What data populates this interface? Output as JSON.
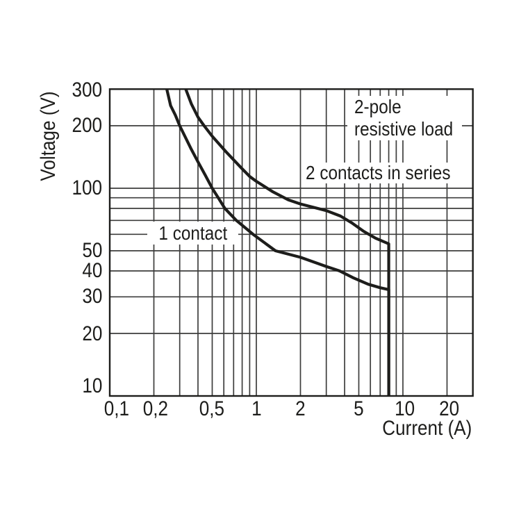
{
  "chart_data": {
    "type": "line",
    "title": "",
    "xlabel": "Current (A)",
    "ylabel": "Voltage (V)",
    "x_scale": "log",
    "y_scale": "log",
    "xlim": [
      0.1,
      30
    ],
    "ylim": [
      10,
      300
    ],
    "grid": true,
    "x_gridlines": [
      0.1,
      0.2,
      0.3,
      0.4,
      0.5,
      0.6,
      0.7,
      0.8,
      0.9,
      1,
      2,
      3,
      4,
      5,
      6,
      7,
      8,
      9,
      10,
      20,
      30
    ],
    "y_gridlines": [
      10,
      20,
      30,
      40,
      50,
      60,
      70,
      80,
      90,
      100,
      200,
      300
    ],
    "x_ticks": [
      {
        "value": 0.1,
        "label": "0,1"
      },
      {
        "value": 0.2,
        "label": "0,2"
      },
      {
        "value": 0.5,
        "label": "0,5"
      },
      {
        "value": 1,
        "label": "1"
      },
      {
        "value": 2,
        "label": "2"
      },
      {
        "value": 5,
        "label": "5"
      },
      {
        "value": 10,
        "label": "10"
      },
      {
        "value": 20,
        "label": "20"
      }
    ],
    "y_ticks": [
      {
        "value": 300,
        "label": "300"
      },
      {
        "value": 200,
        "label": "200"
      },
      {
        "value": 100,
        "label": "100"
      },
      {
        "value": 50,
        "label": "50"
      },
      {
        "value": 40,
        "label": "40"
      },
      {
        "value": 30,
        "label": "30"
      },
      {
        "value": 20,
        "label": "20"
      },
      {
        "value": 10,
        "label": "10"
      }
    ],
    "series": [
      {
        "name": "2 contacts in series",
        "points": [
          [
            0.33,
            300
          ],
          [
            0.36,
            255
          ],
          [
            0.4,
            220
          ],
          [
            0.44,
            200
          ],
          [
            0.5,
            178
          ],
          [
            0.62,
            150
          ],
          [
            0.7,
            137
          ],
          [
            0.8,
            124
          ],
          [
            0.9,
            114
          ],
          [
            1.0,
            108
          ],
          [
            1.3,
            96
          ],
          [
            1.65,
            88
          ],
          [
            2.0,
            84
          ],
          [
            3.0,
            78
          ],
          [
            3.75,
            73.5
          ],
          [
            4.5,
            68
          ],
          [
            5.4,
            62
          ],
          [
            6.5,
            57.5
          ],
          [
            8.0,
            54
          ],
          [
            8.0,
            10
          ]
        ]
      },
      {
        "name": "1 contact",
        "points": [
          [
            0.245,
            300
          ],
          [
            0.26,
            250
          ],
          [
            0.28,
            225
          ],
          [
            0.3,
            200
          ],
          [
            0.36,
            154
          ],
          [
            0.4,
            134
          ],
          [
            0.45,
            115
          ],
          [
            0.5,
            100
          ],
          [
            0.55,
            90
          ],
          [
            0.61,
            80
          ],
          [
            0.73,
            70
          ],
          [
            0.95,
            60
          ],
          [
            1.35,
            50
          ],
          [
            2.0,
            46.5
          ],
          [
            3.0,
            42
          ],
          [
            3.7,
            40
          ],
          [
            4.6,
            37
          ],
          [
            5.8,
            34.5
          ],
          [
            7.0,
            33.2
          ],
          [
            8.0,
            32.5
          ],
          [
            8.0,
            10
          ]
        ]
      }
    ],
    "annotations": [
      {
        "id": "pole-note",
        "lines": [
          "2-pole",
          "resistive load"
        ]
      },
      {
        "id": "series-note",
        "lines": [
          "2 contacts in series"
        ]
      },
      {
        "id": "contact-note",
        "lines": [
          "1 contact"
        ]
      }
    ],
    "colors": {
      "line": "#1d1d1b",
      "grid": "#3d3d3c",
      "background": "#ffffff"
    },
    "legend_position": "none"
  }
}
